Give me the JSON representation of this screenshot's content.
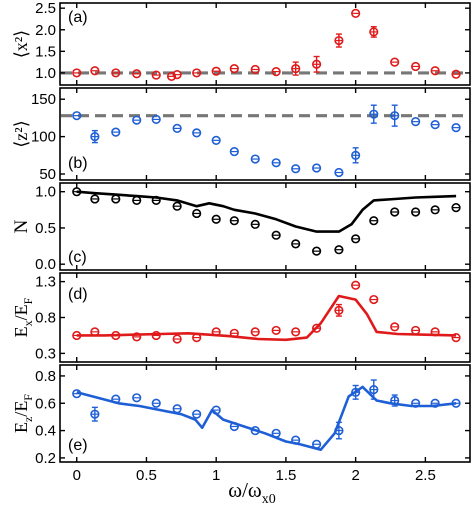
{
  "figure": {
    "xlabel_main": "ω/ω",
    "xlabel_sub": "x0"
  },
  "chart_data": [
    {
      "type": "scatter",
      "panel_label": "(a)",
      "ylabel": "⟨x²⟩",
      "ylim": [
        0.72,
        2.62
      ],
      "yticks": [
        1.0,
        1.5,
        2.0,
        2.5
      ],
      "ytick_labels": [
        "1.0",
        "1.5",
        "2.0",
        "2.5"
      ],
      "reference_line": 1.0,
      "colors": {
        "marker": "#e01a1a",
        "line": "#e01a1a",
        "reference": "#777777"
      },
      "x": [
        0.0,
        0.13,
        0.28,
        0.43,
        0.57,
        0.68,
        0.72,
        0.86,
        1.0,
        1.13,
        1.28,
        1.43,
        1.57,
        1.72,
        1.88,
        2.0,
        2.13,
        2.28,
        2.43,
        2.57,
        2.72
      ],
      "y": [
        1.0,
        1.05,
        1.0,
        0.98,
        0.95,
        0.92,
        0.96,
        1.0,
        1.04,
        1.1,
        1.08,
        1.03,
        1.1,
        1.2,
        1.75,
        2.38,
        1.95,
        1.25,
        1.15,
        1.05,
        0.97
      ],
      "yerr": [
        0.05,
        0.05,
        0.05,
        0.05,
        0.05,
        0.05,
        0.05,
        0.05,
        0.05,
        0.05,
        0.05,
        0.1,
        0.15,
        0.18,
        0.15,
        0.08,
        0.12,
        0.08,
        0.06,
        0.05,
        0.05
      ]
    },
    {
      "type": "scatter",
      "panel_label": "(b)",
      "ylabel": "⟨z²⟩",
      "ylim": [
        42,
        165
      ],
      "yticks": [
        50,
        100,
        150
      ],
      "ytick_labels": [
        "50",
        "100",
        "150"
      ],
      "reference_line": 128,
      "colors": {
        "marker": "#1f5fd6",
        "line": "#1f5fd6",
        "reference": "#777777"
      },
      "x": [
        0.0,
        0.13,
        0.28,
        0.43,
        0.57,
        0.72,
        0.86,
        1.0,
        1.13,
        1.28,
        1.43,
        1.57,
        1.72,
        1.88,
        2.0,
        2.13,
        2.28,
        2.43,
        2.57,
        2.72
      ],
      "y": [
        128,
        100,
        106,
        122,
        123,
        111,
        105,
        95,
        80,
        70,
        65,
        57,
        58,
        52,
        75,
        130,
        128,
        120,
        116,
        112
      ],
      "yerr": [
        3,
        8,
        4,
        3,
        3,
        3,
        3,
        3,
        3,
        3,
        3,
        3,
        3,
        3,
        10,
        12,
        14,
        5,
        4,
        4
      ]
    },
    {
      "type": "scatter+line",
      "panel_label": "(c)",
      "ylabel": "N",
      "ylim": [
        -0.08,
        1.12
      ],
      "yticks": [
        0.0,
        0.5,
        1.0
      ],
      "ytick_labels": [
        "0.0",
        "0.5",
        "1.0"
      ],
      "colors": {
        "marker": "#000000",
        "line": "#000000"
      },
      "x": [
        0.0,
        0.13,
        0.28,
        0.43,
        0.57,
        0.72,
        0.86,
        1.0,
        1.13,
        1.28,
        1.43,
        1.57,
        1.72,
        1.88,
        2.0,
        2.13,
        2.28,
        2.43,
        2.57,
        2.72
      ],
      "y": [
        1.0,
        0.9,
        0.9,
        0.88,
        0.88,
        0.8,
        0.7,
        0.62,
        0.6,
        0.55,
        0.4,
        0.28,
        0.18,
        0.2,
        0.35,
        0.6,
        0.72,
        0.72,
        0.75,
        0.78
      ],
      "line_x": [
        0.0,
        0.13,
        0.28,
        0.43,
        0.57,
        0.72,
        0.86,
        0.95,
        1.05,
        1.13,
        1.28,
        1.43,
        1.57,
        1.72,
        1.88,
        1.97,
        2.05,
        2.13,
        2.28,
        2.43,
        2.57,
        2.72
      ],
      "line_y": [
        1.0,
        0.98,
        0.96,
        0.94,
        0.92,
        0.88,
        0.8,
        0.84,
        0.8,
        0.75,
        0.7,
        0.62,
        0.52,
        0.45,
        0.45,
        0.55,
        0.75,
        0.88,
        0.9,
        0.92,
        0.93,
        0.94
      ]
    },
    {
      "type": "scatter+line",
      "panel_label": "(d)",
      "ylabel_main": "E",
      "ylabel_sub1": "x",
      "ylabel_sep": "/E",
      "ylabel_sub2": "F",
      "ylim": [
        0.18,
        1.42
      ],
      "yticks": [
        0.3,
        0.8,
        1.3
      ],
      "ytick_labels": [
        "0.3",
        "0.8",
        "1.3"
      ],
      "colors": {
        "marker": "#e01a1a",
        "line": "#e01a1a"
      },
      "x": [
        0.0,
        0.13,
        0.28,
        0.43,
        0.57,
        0.72,
        0.86,
        1.0,
        1.13,
        1.28,
        1.43,
        1.57,
        1.72,
        1.88,
        2.0,
        2.13,
        2.28,
        2.43,
        2.57,
        2.72
      ],
      "y": [
        0.55,
        0.6,
        0.55,
        0.53,
        0.55,
        0.5,
        0.52,
        0.6,
        0.58,
        0.6,
        0.62,
        0.6,
        0.65,
        0.9,
        1.25,
        1.05,
        0.67,
        0.62,
        0.6,
        0.52
      ],
      "yerr": [
        0.03,
        0.03,
        0.03,
        0.03,
        0.03,
        0.03,
        0.03,
        0.03,
        0.03,
        0.03,
        0.03,
        0.03,
        0.05,
        0.08,
        0.04,
        0.05,
        0.03,
        0.03,
        0.03,
        0.03
      ],
      "line_x": [
        0.0,
        0.2,
        0.4,
        0.6,
        0.8,
        0.95,
        1.1,
        1.3,
        1.5,
        1.65,
        1.75,
        1.88,
        2.0,
        2.08,
        2.15,
        2.3,
        2.5,
        2.72
      ],
      "line_y": [
        0.55,
        0.55,
        0.56,
        0.57,
        0.58,
        0.56,
        0.54,
        0.5,
        0.49,
        0.52,
        0.72,
        1.1,
        1.05,
        0.85,
        0.6,
        0.57,
        0.56,
        0.55
      ]
    },
    {
      "type": "scatter+line",
      "panel_label": "(e)",
      "ylabel_main": "E",
      "ylabel_sub1": "z",
      "ylabel_sep": "/E",
      "ylabel_sub2": "F",
      "ylim": [
        0.17,
        0.88
      ],
      "yticks": [
        0.2,
        0.4,
        0.6,
        0.8
      ],
      "ytick_labels": [
        "0.2",
        "0.4",
        "0.6",
        "0.8"
      ],
      "colors": {
        "marker": "#1f5fd6",
        "line": "#1f5fd6"
      },
      "x": [
        0.0,
        0.13,
        0.28,
        0.43,
        0.57,
        0.72,
        0.86,
        1.0,
        1.13,
        1.28,
        1.43,
        1.57,
        1.72,
        1.88,
        2.0,
        2.13,
        2.28,
        2.43,
        2.57,
        2.72
      ],
      "y": [
        0.67,
        0.52,
        0.63,
        0.64,
        0.6,
        0.56,
        0.52,
        0.55,
        0.43,
        0.4,
        0.38,
        0.33,
        0.3,
        0.4,
        0.68,
        0.7,
        0.62,
        0.6,
        0.6,
        0.6
      ],
      "yerr": [
        0.02,
        0.05,
        0.03,
        0.03,
        0.03,
        0.03,
        0.03,
        0.03,
        0.03,
        0.03,
        0.03,
        0.03,
        0.03,
        0.06,
        0.05,
        0.07,
        0.04,
        0.03,
        0.03,
        0.03
      ],
      "line_x": [
        0.0,
        0.15,
        0.3,
        0.45,
        0.6,
        0.75,
        0.85,
        0.9,
        0.97,
        1.05,
        1.2,
        1.35,
        1.5,
        1.6,
        1.75,
        1.85,
        1.95,
        2.05,
        2.15,
        2.25,
        2.4,
        2.55,
        2.72
      ],
      "line_y": [
        0.68,
        0.64,
        0.6,
        0.58,
        0.55,
        0.52,
        0.48,
        0.42,
        0.55,
        0.48,
        0.43,
        0.38,
        0.32,
        0.3,
        0.26,
        0.38,
        0.65,
        0.72,
        0.62,
        0.6,
        0.58,
        0.58,
        0.6
      ]
    }
  ],
  "x_axis": {
    "xlim": [
      -0.12,
      2.82
    ],
    "ticks": [
      0,
      0.5,
      1,
      1.5,
      2,
      2.5
    ],
    "tick_labels": [
      "0",
      "0.5",
      "1",
      "1.5",
      "2",
      "2.5"
    ]
  }
}
